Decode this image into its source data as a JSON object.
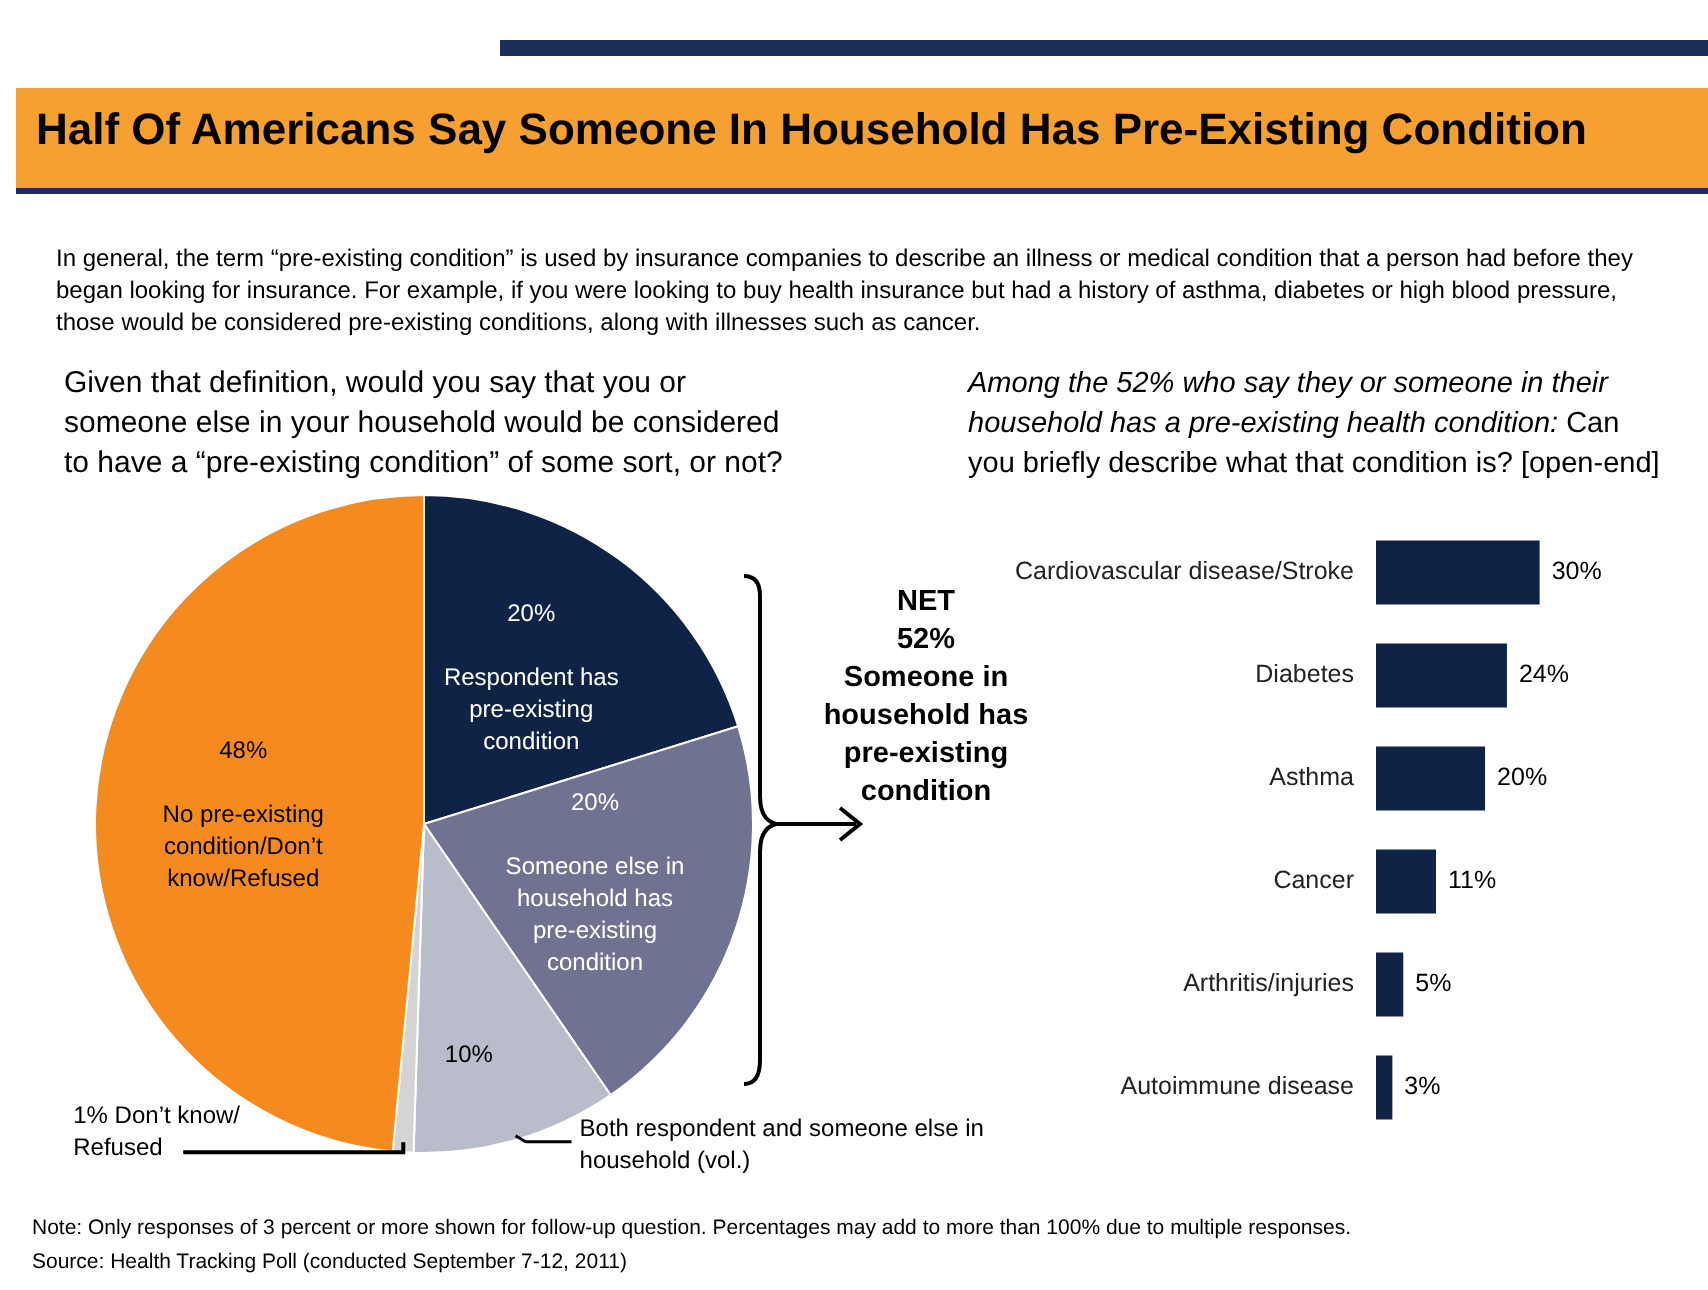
{
  "chart_data": [
    {
      "type": "pie",
      "title": "Half Of Americans Say Someone In Household Has Pre-Existing Condition",
      "subtitle": "In general, the term “pre-existing condition” is used by insurance companies to describe an illness or medical condition that a person had before they began looking for insurance. For example, if you were looking to buy health insurance but had a history of asthma, diabetes or high blood pressure, those would be considered pre-existing conditions, along with illnesses such as cancer.",
      "categories": [
        "Respondent has pre-existing condition",
        "Someone else in household has pre-existing condition",
        "Both respondent and someone else in household (vol.)",
        "Don’t know/ Refused",
        "No pre-existing condition/Don’t know/Refused"
      ],
      "values": [
        20,
        20,
        10,
        1,
        48
      ],
      "colors": [
        "#0f2346",
        "#6f7391",
        "#b9bccb",
        "#d4d4d4",
        "#f58a1f"
      ],
      "value_labels": [
        "20%",
        "20%",
        "10%",
        "1%",
        "48%"
      ],
      "annotations": [
        "Given that definition, would you say that you or someone else in your household would be considered to have a “pre-existing condition” of some sort, or not?",
        "NET\n52%\nSomeone in\nhousehold has\npre-existing\ncondition",
        "Note: Only responses of 3 percent or more shown for follow-up question. Percentages may add to more than 100% due to multiple responses.",
        "Source: Health Tracking Poll (conducted September 7-12, 2011)"
      ]
    },
    {
      "type": "bar",
      "orientation": "horizontal",
      "title": "Among the 52% who say they or someone in their household has a pre-existing health condition:",
      "subtitle": "Can you briefly describe what that condition is? [open-end]",
      "categories": [
        "Cardiovascular disease/Stroke",
        "Diabetes",
        "Asthma",
        "Cancer",
        "Arthritis/injuries",
        "Autoimmune disease"
      ],
      "values": [
        30,
        24,
        20,
        11,
        5,
        3
      ],
      "color": "#0f2346",
      "value_labels": [
        "30%",
        "24%",
        "20%",
        "11%",
        "5%",
        "3%"
      ]
    }
  ]
}
